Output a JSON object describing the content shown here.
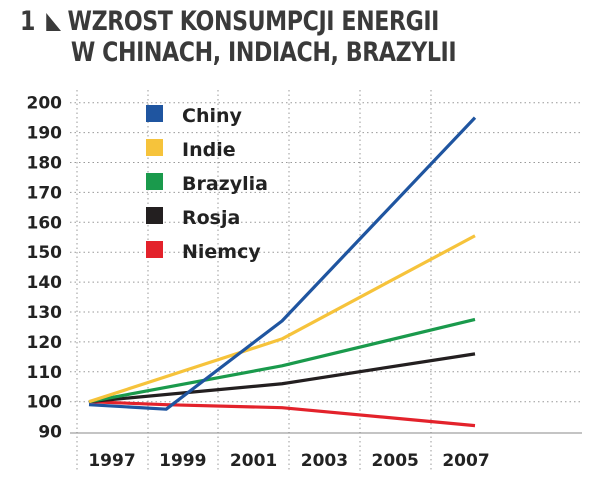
{
  "title": {
    "number": "1",
    "line1": "WZROST KONSUMPCJI ENERGII",
    "line2": "W CHINACH, INDIACH, BRAZYLII"
  },
  "chart_data": {
    "type": "line",
    "title": "WZROST KONSUMPCJI ENERGII W CHINACH, INDIACH, BRAZYLII",
    "xlabel": "",
    "ylabel": "",
    "x_ticks": [
      "1997",
      "1999",
      "2001",
      "2003",
      "2005",
      "2007"
    ],
    "y_ticks": [
      200,
      190,
      180,
      170,
      160,
      150,
      140,
      130,
      120,
      110,
      100,
      90
    ],
    "ylim": [
      90,
      200
    ],
    "grid": true,
    "legend_placement": "top-left",
    "series": [
      {
        "name": "Chiny",
        "color": "#1f55a0",
        "points": [
          [
            1997,
            99
          ],
          [
            1999,
            97.5
          ],
          [
            2002,
            127
          ],
          [
            2007,
            195
          ]
        ]
      },
      {
        "name": "Indie",
        "color": "#f6c33b",
        "points": [
          [
            1997,
            100
          ],
          [
            2002,
            121
          ],
          [
            2007,
            155.5
          ]
        ]
      },
      {
        "name": "Brazylia",
        "color": "#1a9a4c",
        "points": [
          [
            1997,
            100
          ],
          [
            2002,
            112
          ],
          [
            2007,
            127.5
          ]
        ]
      },
      {
        "name": "Rosja",
        "color": "#231f20",
        "points": [
          [
            1997,
            100
          ],
          [
            2002,
            106
          ],
          [
            2007,
            116
          ]
        ]
      },
      {
        "name": "Niemcy",
        "color": "#e3222b",
        "points": [
          [
            1997,
            100
          ],
          [
            1999,
            99
          ],
          [
            2002,
            98
          ],
          [
            2007,
            92
          ]
        ]
      }
    ]
  }
}
